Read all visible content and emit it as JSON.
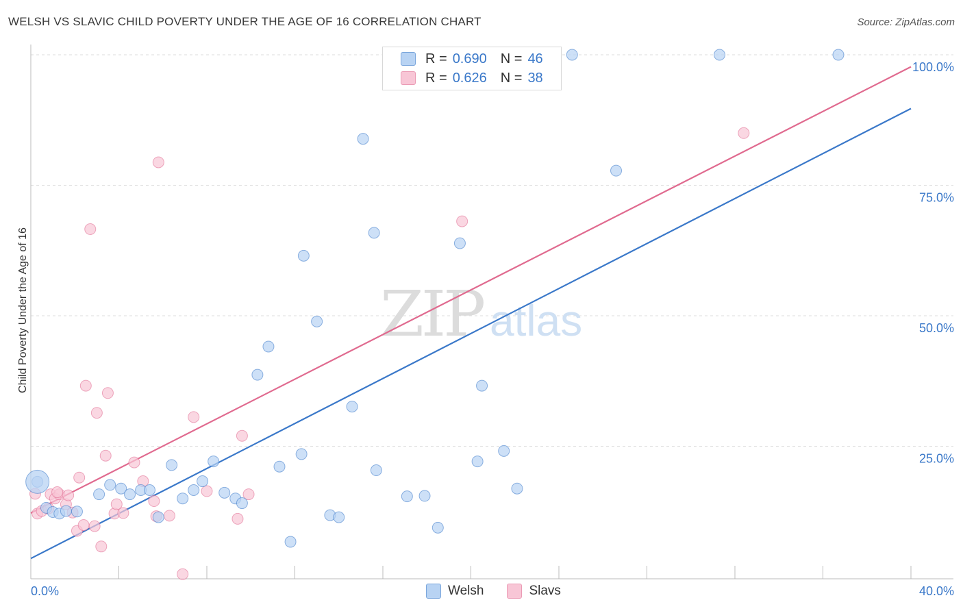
{
  "header": {
    "title": "WELSH VS SLAVIC CHILD POVERTY UNDER THE AGE OF 16 CORRELATION CHART",
    "source": "Source: ZipAtlas.com"
  },
  "watermark": {
    "zip": "ZIP",
    "atlas": "atlas"
  },
  "legend": {
    "rows": [
      {
        "r_label": "R =",
        "r_value": "0.690",
        "n_label": "N =",
        "n_value": "46",
        "color": "#b8d3f3"
      },
      {
        "r_label": "R =",
        "r_value": "0.626",
        "n_label": "N =",
        "n_value": "38",
        "color": "#f8c6d6"
      }
    ]
  },
  "bottom_legend": {
    "welsh": "Welsh",
    "slavs": "Slavs"
  },
  "chart_data": {
    "type": "scatter",
    "xlabel": "",
    "ylabel": "Child Poverty Under the Age of 16",
    "xlim": [
      0,
      40
    ],
    "ylim": [
      0,
      101
    ],
    "x_tick_labels": [
      "0.0%",
      "40.0%"
    ],
    "y_tick_labels": [
      "25.0%",
      "50.0%",
      "75.0%",
      "100.0%"
    ],
    "y_ticks": [
      25,
      50,
      75,
      100
    ],
    "grid": "horizontal dashed",
    "legend_placement": "top-center",
    "series": [
      {
        "name": "Welsh",
        "color": "#3a78c9",
        "fill": "#b8d3f3",
        "trend": {
          "x": [
            0,
            40
          ],
          "y": [
            3.5,
            89.7
          ]
        },
        "points": [
          [
            0.3,
            18.2
          ],
          [
            0.7,
            13.2
          ],
          [
            1.0,
            12.4
          ],
          [
            1.3,
            12.1
          ],
          [
            1.6,
            12.6
          ],
          [
            2.1,
            12.5
          ],
          [
            3.1,
            15.8
          ],
          [
            3.6,
            17.6
          ],
          [
            4.1,
            16.9
          ],
          [
            4.5,
            15.8
          ],
          [
            5.0,
            16.6
          ],
          [
            5.4,
            16.6
          ],
          [
            5.8,
            11.4
          ],
          [
            6.4,
            21.4
          ],
          [
            6.9,
            15.0
          ],
          [
            7.4,
            16.6
          ],
          [
            7.8,
            18.3
          ],
          [
            8.3,
            22.1
          ],
          [
            8.8,
            16.1
          ],
          [
            9.3,
            15.0
          ],
          [
            9.6,
            14.1
          ],
          [
            10.3,
            38.7
          ],
          [
            10.8,
            44.1
          ],
          [
            11.3,
            21.1
          ],
          [
            11.8,
            6.7
          ],
          [
            12.4,
            61.5
          ],
          [
            12.3,
            23.5
          ],
          [
            13.0,
            48.9
          ],
          [
            13.6,
            11.8
          ],
          [
            14.0,
            11.4
          ],
          [
            14.6,
            32.6
          ],
          [
            15.1,
            83.9
          ],
          [
            15.6,
            65.9
          ],
          [
            15.7,
            20.4
          ],
          [
            17.1,
            15.4
          ],
          [
            17.9,
            15.5
          ],
          [
            18.5,
            9.4
          ],
          [
            19.5,
            63.9
          ],
          [
            20.3,
            22.1
          ],
          [
            20.5,
            36.6
          ],
          [
            21.5,
            24.1
          ],
          [
            22.1,
            16.9
          ],
          [
            24.6,
            100.0
          ],
          [
            26.6,
            77.8
          ],
          [
            31.3,
            100.0
          ],
          [
            36.7,
            100.0
          ]
        ]
      },
      {
        "name": "Slavs",
        "color": "#e06a8f",
        "fill": "#f8c6d6",
        "trend": {
          "x": [
            0,
            40
          ],
          "y": [
            12.2,
            97.7
          ]
        },
        "points": [
          [
            0.2,
            15.9
          ],
          [
            0.3,
            12.1
          ],
          [
            0.5,
            12.6
          ],
          [
            0.8,
            13.1
          ],
          [
            0.9,
            15.8
          ],
          [
            1.1,
            15.0
          ],
          [
            1.3,
            15.8
          ],
          [
            1.6,
            13.9
          ],
          [
            1.7,
            15.6
          ],
          [
            1.9,
            12.3
          ],
          [
            2.1,
            8.8
          ],
          [
            2.2,
            19.0
          ],
          [
            2.4,
            9.9
          ],
          [
            2.5,
            36.6
          ],
          [
            2.7,
            66.6
          ],
          [
            2.9,
            9.7
          ],
          [
            3.0,
            31.4
          ],
          [
            3.2,
            5.8
          ],
          [
            3.4,
            23.2
          ],
          [
            3.5,
            35.2
          ],
          [
            3.8,
            12.1
          ],
          [
            3.9,
            13.9
          ],
          [
            4.2,
            12.2
          ],
          [
            4.7,
            21.9
          ],
          [
            5.1,
            18.3
          ],
          [
            5.6,
            14.5
          ],
          [
            5.7,
            11.6
          ],
          [
            5.8,
            79.4
          ],
          [
            6.3,
            11.7
          ],
          [
            6.9,
            0.5
          ],
          [
            7.4,
            30.6
          ],
          [
            8.0,
            16.4
          ],
          [
            9.4,
            11.1
          ],
          [
            9.6,
            27.0
          ],
          [
            9.9,
            15.8
          ],
          [
            19.6,
            68.1
          ],
          [
            32.4,
            85.0
          ],
          [
            1.2,
            16.2
          ]
        ]
      }
    ],
    "bubbles": [
      {
        "series": "Welsh",
        "x": 0.3,
        "y": 18.2,
        "size": "large"
      }
    ]
  }
}
